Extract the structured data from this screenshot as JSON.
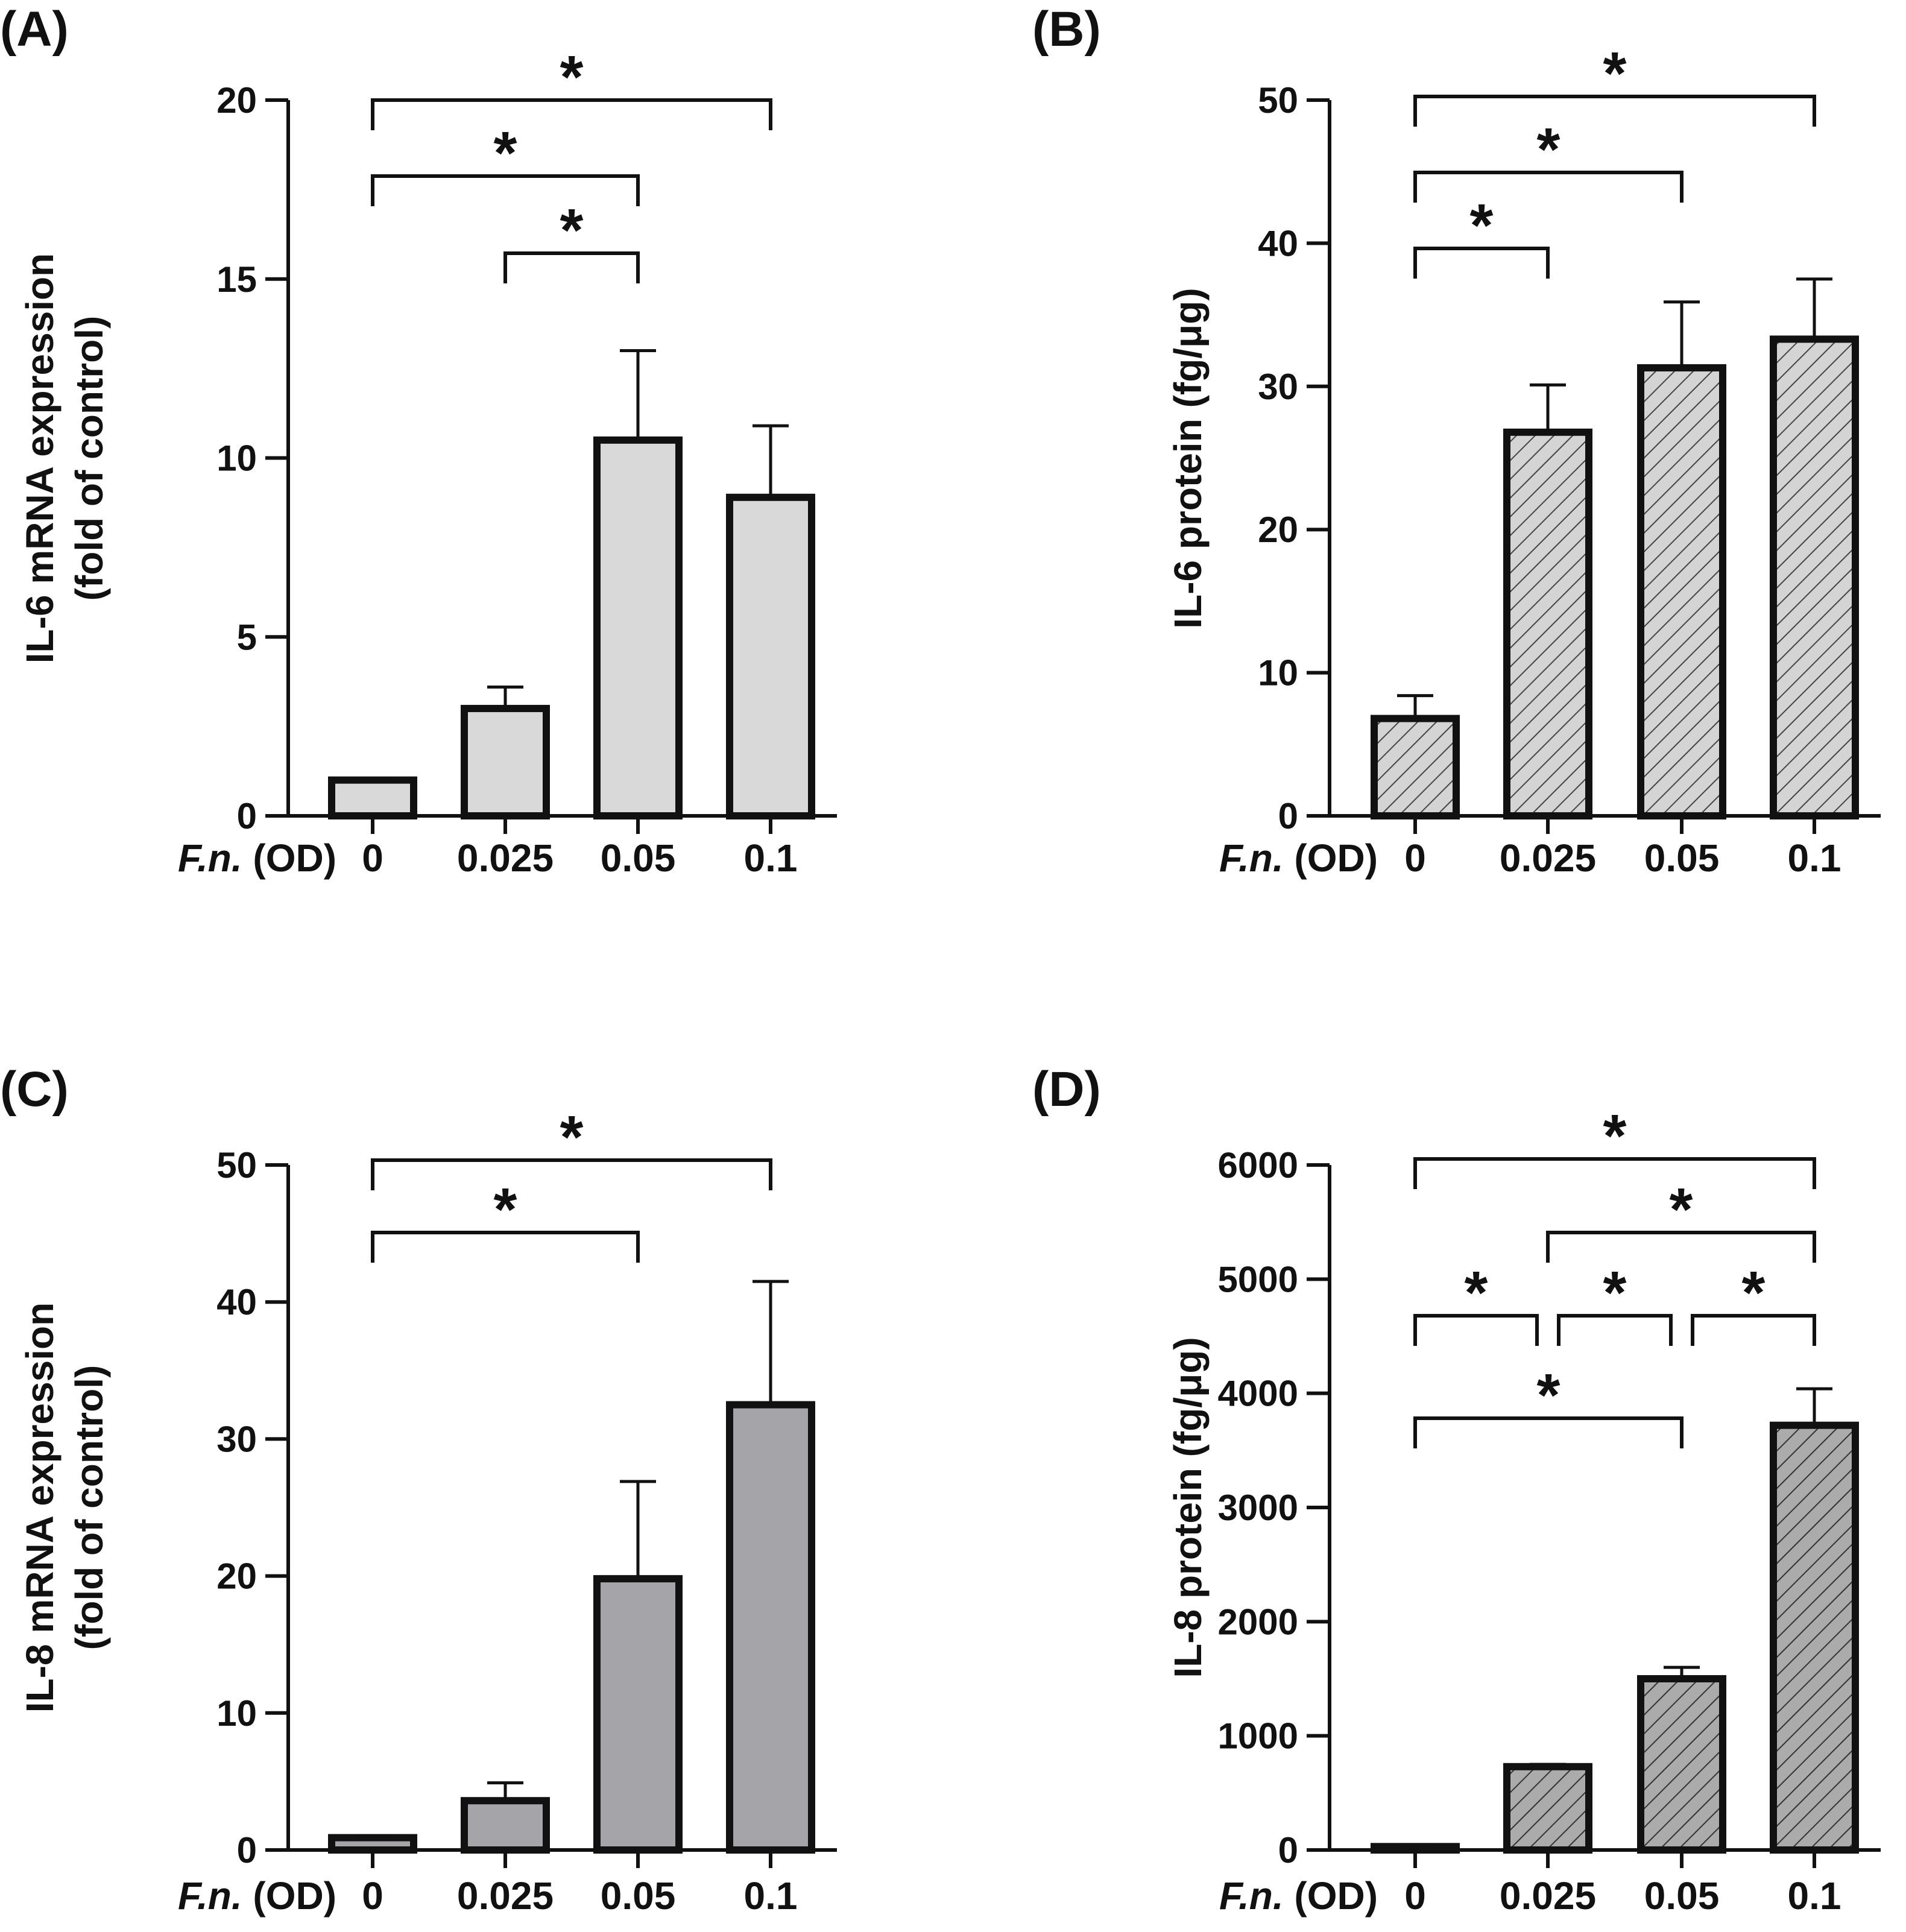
{
  "chart_data": [
    {
      "panel": "(A)",
      "type": "bar",
      "categories": [
        "0",
        "0.025",
        "0.05",
        "0.1"
      ],
      "values": [
        1,
        3,
        10.5,
        8.9
      ],
      "errors": [
        0.05,
        0.6,
        2.5,
        2.0
      ],
      "ylabel": [
        "IL-6 mRNA expression",
        "(fold of control)"
      ],
      "xlabel_italic": "F.n.",
      "xlabel_rest": " (OD)",
      "ylim": [
        0,
        20
      ],
      "yticks": [
        0,
        5,
        10,
        15,
        20
      ],
      "fill": "#d9d9d9",
      "hatch": false,
      "significance": [
        {
          "from": 0,
          "to": 3,
          "label": "*"
        },
        {
          "from": 0,
          "to": 2,
          "label": "*"
        },
        {
          "from": 1,
          "to": 2,
          "label": "*"
        }
      ]
    },
    {
      "panel": "(B)",
      "type": "bar",
      "categories": [
        "0",
        "0.025",
        "0.05",
        "0.1"
      ],
      "values": [
        6.8,
        26.8,
        31.3,
        33.3
      ],
      "errors": [
        1.6,
        3.3,
        4.6,
        4.2
      ],
      "ylabel": [
        "IL-6 protein (fg/μg)"
      ],
      "xlabel_italic": "F.n.",
      "xlabel_rest": " (OD)",
      "ylim": [
        0,
        50
      ],
      "yticks": [
        0,
        10,
        20,
        30,
        40,
        50
      ],
      "fill": "#cfcfcf",
      "hatch": true,
      "significance": [
        {
          "from": 0,
          "to": 3,
          "label": "*"
        },
        {
          "from": 0,
          "to": 2,
          "label": "*"
        },
        {
          "from": 0,
          "to": 1,
          "label": "*"
        }
      ]
    },
    {
      "panel": "(C)",
      "type": "bar",
      "categories": [
        "0",
        "0.025",
        "0.05",
        "0.1"
      ],
      "values": [
        0.9,
        3.6,
        19.8,
        32.5
      ],
      "errors": [
        0.1,
        1.3,
        7.1,
        9.0
      ],
      "ylabel": [
        "IL-8 mRNA expression",
        "(fold of control)"
      ],
      "xlabel_italic": "F.n.",
      "xlabel_rest": " (OD)",
      "ylim": [
        0,
        50
      ],
      "yticks": [
        0,
        10,
        20,
        30,
        40,
        50
      ],
      "fill": "#a4a4a9",
      "hatch": false,
      "significance": [
        {
          "from": 0,
          "to": 3,
          "label": "*"
        },
        {
          "from": 0,
          "to": 2,
          "label": "*"
        }
      ]
    },
    {
      "panel": "(D)",
      "type": "bar",
      "categories": [
        "0",
        "0.025",
        "0.05",
        "0.1"
      ],
      "values": [
        30,
        730,
        1500,
        3720
      ],
      "errors": [
        10,
        20,
        100,
        320
      ],
      "ylabel": [
        "IL-8 protein (fg/μg)"
      ],
      "xlabel_italic": "F.n.",
      "xlabel_rest": " (OD)",
      "ylim": [
        0,
        6000
      ],
      "yticks": [
        0,
        1000,
        2000,
        3000,
        4000,
        5000,
        6000
      ],
      "fill": "#a8a8a8",
      "hatch": true,
      "significance": [
        {
          "from": 0,
          "to": 3,
          "label": "*"
        },
        {
          "from": 1,
          "to": 3,
          "label": "*"
        },
        {
          "from": 0,
          "to": 1,
          "label": "*"
        },
        {
          "from": 1,
          "to": 2,
          "label": "*"
        },
        {
          "from": 2,
          "to": 3,
          "label": "*"
        },
        {
          "from": 0,
          "to": 2,
          "label": "*"
        }
      ]
    }
  ]
}
